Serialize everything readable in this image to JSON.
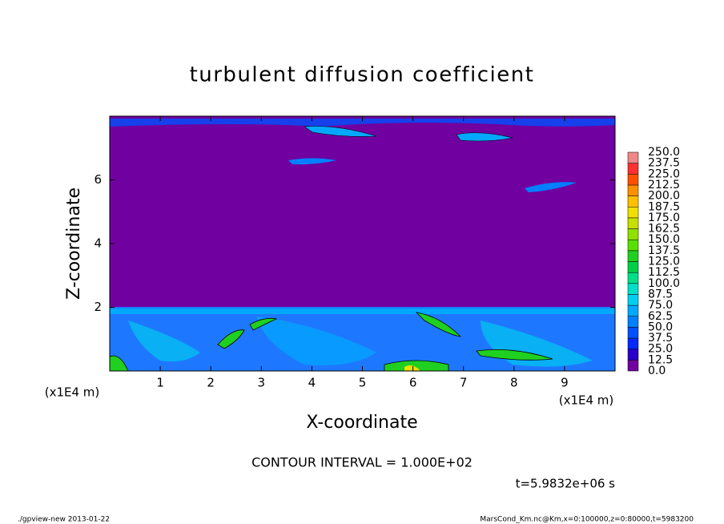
{
  "chart_data": {
    "type": "contour",
    "title": "turbulent diffusion coefficient",
    "xlabel": "X-coordinate",
    "ylabel": "Z-coordinate",
    "x_unit_label": "(x1E4 m)",
    "y_unit_label": "(x1E4 m)",
    "xlim": [
      0,
      10
    ],
    "xticks": [
      1,
      2,
      3,
      4,
      5,
      6,
      7,
      8,
      9
    ],
    "ylim": [
      0,
      8
    ],
    "yticks": [
      2,
      4,
      6
    ],
    "levels": [
      {
        "value": 0,
        "label": "0.0"
      },
      12.5,
      {
        "value": 25,
        "label": "25.0"
      },
      37.5,
      {
        "value": 50,
        "label": "50.0"
      },
      62.5,
      {
        "value": 75,
        "label": "75.0"
      },
      87.5,
      {
        "value": 100,
        "label": "100.0"
      },
      112.5,
      {
        "value": 125,
        "label": "125.0"
      },
      137.5,
      {
        "value": 150,
        "label": "150.0"
      },
      162.5,
      {
        "value": 175,
        "label": "175.0"
      },
      187.5,
      {
        "value": 200,
        "label": "200.0"
      },
      212.5,
      {
        "value": 225,
        "label": "225.0"
      },
      237.5,
      {
        "value": 250,
        "label": "250.0"
      }
    ],
    "colors": [
      "#7000a0",
      "#2800c8",
      "#0028ff",
      "#0050ff",
      "#0080ff",
      "#00a8ff",
      "#00d0f0",
      "#00e0c8",
      "#00e088",
      "#00d048",
      "#20d020",
      "#58e000",
      "#90e000",
      "#c8e000",
      "#f0e000",
      "#ffc000",
      "#ff9000",
      "#ff5000",
      "#ff3030",
      "#f08888"
    ],
    "contour_interval": "CONTOUR INTERVAL = 1.000E+02",
    "time_label": "t=5.9832e+06 s",
    "footer_left": "./gpview-new  2013-01-22",
    "footer_right": "MarsCond_Km.nc@Km,x=0:100000,z=0:80000,t=5983200"
  }
}
